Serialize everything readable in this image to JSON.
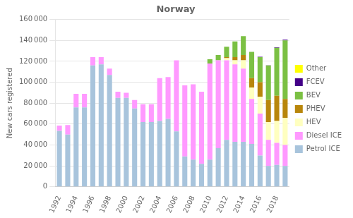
{
  "chart_data": {
    "type": "bar",
    "title": "Norway",
    "ylabel": "New cars registered",
    "stacked": true,
    "grid": true,
    "legend": "right",
    "categories": [
      "1992",
      null,
      "1994",
      null,
      "1996",
      null,
      "1998",
      null,
      "2000",
      null,
      "2002",
      null,
      "2004",
      null,
      "2006",
      null,
      "2008",
      null,
      "2010",
      null,
      "2012",
      null,
      "2014",
      null,
      "2016",
      null,
      "2018",
      null
    ],
    "series": [
      {
        "name": "Petrol ICE",
        "color": "#a8c4dc",
        "values": [
          53500,
          50000,
          76000,
          76000,
          116000,
          117000,
          107000,
          85000,
          85000,
          75000,
          62000,
          62000,
          63000,
          65000,
          53000,
          29000,
          26000,
          22000,
          26000,
          37000,
          45000,
          43000,
          43000,
          41000,
          30000,
          20000,
          21000,
          20000
        ]
      },
      {
        "name": "Diesel ICE",
        "color": "#ff99ff",
        "values": [
          5000,
          9000,
          13000,
          13000,
          8000,
          7000,
          6000,
          6000,
          5000,
          8000,
          17000,
          17000,
          41000,
          40000,
          68000,
          68000,
          72000,
          69000,
          92000,
          84000,
          76000,
          74000,
          70000,
          43000,
          40000,
          25000,
          21000,
          20000
        ]
      },
      {
        "name": "HEV",
        "color": "#ffffc0",
        "values": [
          0,
          0,
          0,
          0,
          0,
          0,
          0,
          0,
          0,
          0,
          0,
          0,
          0,
          0,
          0,
          0,
          0,
          0,
          0,
          0,
          2000,
          4000,
          8000,
          11000,
          16000,
          17000,
          21000,
          26000
        ]
      },
      {
        "name": "PHEV",
        "color": "#b8860b",
        "values": [
          0,
          0,
          0,
          0,
          0,
          0,
          0,
          0,
          0,
          0,
          0,
          0,
          0,
          0,
          0,
          0,
          0,
          0,
          0,
          0,
          1000,
          3000,
          5000,
          9000,
          14000,
          21000,
          24000,
          18000
        ]
      },
      {
        "name": "BEV",
        "color": "#7bc043",
        "values": [
          0,
          0,
          0,
          0,
          0,
          0,
          0,
          0,
          0,
          0,
          0,
          0,
          0,
          0,
          0,
          0,
          0,
          0,
          4000,
          5000,
          10000,
          15000,
          18000,
          25000,
          24000,
          33000,
          46000,
          56000
        ]
      },
      {
        "name": "FCEV",
        "color": "#440088",
        "values": [
          0,
          0,
          0,
          0,
          0,
          0,
          0,
          0,
          0,
          0,
          0,
          0,
          0,
          0,
          0,
          0,
          0,
          0,
          0,
          0,
          0,
          0,
          0,
          100,
          300,
          300,
          400,
          600
        ]
      },
      {
        "name": "Other",
        "color": "#ffff00",
        "values": [
          0,
          0,
          0,
          0,
          0,
          0,
          0,
          0,
          0,
          0,
          0,
          0,
          0,
          0,
          0,
          0,
          0,
          0,
          0,
          0,
          0,
          0,
          0,
          0,
          0,
          0,
          0,
          0
        ]
      }
    ],
    "ylim": [
      0,
      160000
    ],
    "yticks": [
      0,
      {
        "value": 20000,
        "label": "20 000"
      },
      {
        "value": 40000,
        "label": "40 000"
      },
      {
        "value": 60000,
        "label": "60 000"
      },
      {
        "value": 80000,
        "label": "80 000"
      },
      {
        "value": 100000,
        "label": "100 000"
      },
      {
        "value": 120000,
        "label": "120 000"
      },
      {
        "value": 140000,
        "label": "140 000"
      },
      {
        "value": 160000,
        "label": "160 000"
      }
    ]
  }
}
